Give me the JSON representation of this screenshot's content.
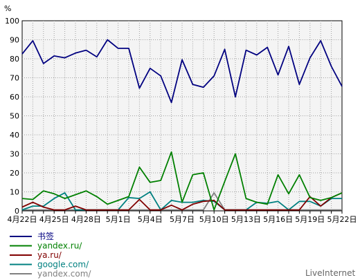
{
  "brand": "LiveInternet",
  "chart_data": {
    "type": "line",
    "ylabel": "%",
    "ylim": [
      0,
      100
    ],
    "yticks": [
      0,
      10,
      20,
      30,
      40,
      50,
      60,
      70,
      80,
      90,
      100
    ],
    "grid": true,
    "legend_position": "bottom-left",
    "x": [
      "4月22日",
      "4月23日",
      "4月24日",
      "4月25日",
      "4月26日",
      "4月27日",
      "4月28日",
      "4月29日",
      "4月30日",
      "5月1日",
      "5月2日",
      "5月3日",
      "5月4日",
      "5月5日",
      "5月6日",
      "5月7日",
      "5月8日",
      "5月9日",
      "5月10日",
      "5月11日",
      "5月12日",
      "5月13日",
      "5月14日",
      "5月15日",
      "5月16日",
      "5月17日",
      "5月18日",
      "5月19日",
      "5月20日",
      "5月21日",
      "5月22日"
    ],
    "xtick_labels": [
      "4月22日",
      "4月25日",
      "4月28日",
      "5月1日",
      "5月4日",
      "5月7日",
      "5月10日",
      "5月13日",
      "5月16日",
      "5月19日",
      "5月22日"
    ],
    "series": [
      {
        "name": "书签",
        "color": "#000080",
        "values": [
          82.5,
          89.5,
          77.5,
          81.5,
          80.5,
          83,
          84.5,
          81,
          90,
          85.5,
          85.5,
          64.5,
          75,
          71,
          57,
          79.5,
          66.5,
          65,
          71,
          85,
          60,
          84.5,
          82,
          86,
          71.5,
          86.5,
          66.5,
          80.5,
          89.5,
          76,
          65.5
        ]
      },
      {
        "name": "yandex.ru/",
        "color": "#008000",
        "values": [
          6.5,
          6,
          10.5,
          9,
          6.5,
          8.5,
          10.5,
          7.5,
          3.5,
          5.5,
          7.5,
          23,
          15,
          16,
          31,
          4.5,
          19,
          20,
          0.5,
          15.5,
          30,
          6.5,
          4.5,
          3.5,
          19,
          9,
          19,
          7,
          5.5,
          7,
          9.5
        ]
      },
      {
        "name": "ya.ru/",
        "color": "#800000",
        "values": [
          2,
          4.5,
          2,
          0.5,
          0.5,
          2.5,
          0.5,
          0.5,
          0.5,
          0.5,
          0.5,
          6,
          0.5,
          0.5,
          3,
          0.5,
          3.5,
          5,
          5.5,
          0.5,
          0.5,
          0.5,
          0.5,
          0.5,
          0.5,
          0.5,
          0.5,
          7.5,
          2.5,
          7,
          9.5
        ]
      },
      {
        "name": "google.com/",
        "color": "#008080",
        "values": [
          0.5,
          2.5,
          2.5,
          6.5,
          9.5,
          0.5,
          0.5,
          0.5,
          0.5,
          0.5,
          7,
          6.5,
          10,
          0.5,
          5.5,
          4.5,
          4.5,
          5.5,
          5,
          0.5,
          0.5,
          0.5,
          4.5,
          4,
          5,
          0.5,
          5,
          5,
          2.5,
          6.5,
          6.5
        ]
      },
      {
        "name": "yandex.com/",
        "color": "#808080",
        "values": [
          0.5,
          0.5,
          0.5,
          0.5,
          0.5,
          0.5,
          0.5,
          0.5,
          0.5,
          0.5,
          0.5,
          0.5,
          0.5,
          0.5,
          0.5,
          0.5,
          0.5,
          0.5,
          9.5,
          0.5,
          0.5,
          0.5,
          0.5,
          0.5,
          0.5,
          0.5,
          0.5,
          0.5,
          0.5,
          0.5,
          0.5
        ]
      }
    ]
  }
}
